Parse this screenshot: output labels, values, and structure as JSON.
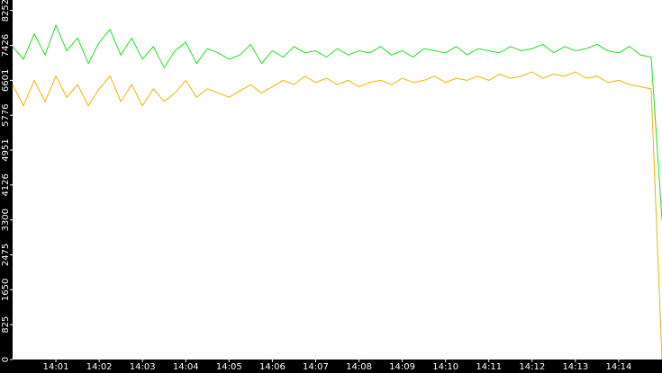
{
  "chart_data": {
    "type": "line",
    "categories": [
      null,
      null,
      null,
      null,
      "14:01",
      null,
      null,
      null,
      "14:02",
      null,
      null,
      null,
      "14:03",
      null,
      null,
      null,
      "14:04",
      null,
      null,
      null,
      "14:05",
      null,
      null,
      null,
      "14:06",
      null,
      null,
      null,
      "14:07",
      null,
      null,
      null,
      "14:08",
      null,
      null,
      null,
      "14:09",
      null,
      null,
      null,
      "14:10",
      null,
      null,
      null,
      "14:11",
      null,
      null,
      null,
      "14:12",
      null,
      null,
      null,
      "14:13",
      null,
      null,
      null,
      "14:14",
      null,
      null,
      null,
      null
    ],
    "series": [
      {
        "color": "#22dd22",
        "values": [
          7400,
          7100,
          7700,
          7200,
          7900,
          7300,
          7600,
          7000,
          7500,
          7800,
          7200,
          7600,
          7100,
          7400,
          6900,
          7300,
          7500,
          7000,
          7350,
          7250,
          7100,
          7200,
          7450,
          7000,
          7300,
          7150,
          7400,
          7250,
          7300,
          7150,
          7350,
          7200,
          7300,
          7250,
          7400,
          7200,
          7300,
          7150,
          7350,
          7300,
          7250,
          7400,
          7200,
          7350,
          7300,
          7250,
          7400,
          7300,
          7350,
          7450,
          7250,
          7400,
          7300,
          7350,
          7450,
          7300,
          7250,
          7400,
          7200,
          7150,
          3300
        ]
      },
      {
        "color": "#f0b400",
        "values": [
          6500,
          6000,
          6600,
          6100,
          6700,
          6200,
          6500,
          6000,
          6400,
          6700,
          6100,
          6500,
          6000,
          6400,
          6100,
          6300,
          6600,
          6200,
          6400,
          6300,
          6200,
          6350,
          6500,
          6300,
          6450,
          6600,
          6500,
          6700,
          6550,
          6650,
          6500,
          6600,
          6450,
          6550,
          6600,
          6500,
          6650,
          6550,
          6600,
          6700,
          6550,
          6650,
          6600,
          6700,
          6600,
          6750,
          6650,
          6700,
          6800,
          6650,
          6750,
          6700,
          6800,
          6650,
          6700,
          6550,
          6600,
          6500,
          6450,
          6400,
          0
        ]
      }
    ],
    "ylim": [
      0,
      8500
    ],
    "yticks": [
      0,
      825,
      1650,
      2475,
      3300,
      4126,
      4951,
      5776,
      6601,
      7426,
      8252
    ]
  }
}
